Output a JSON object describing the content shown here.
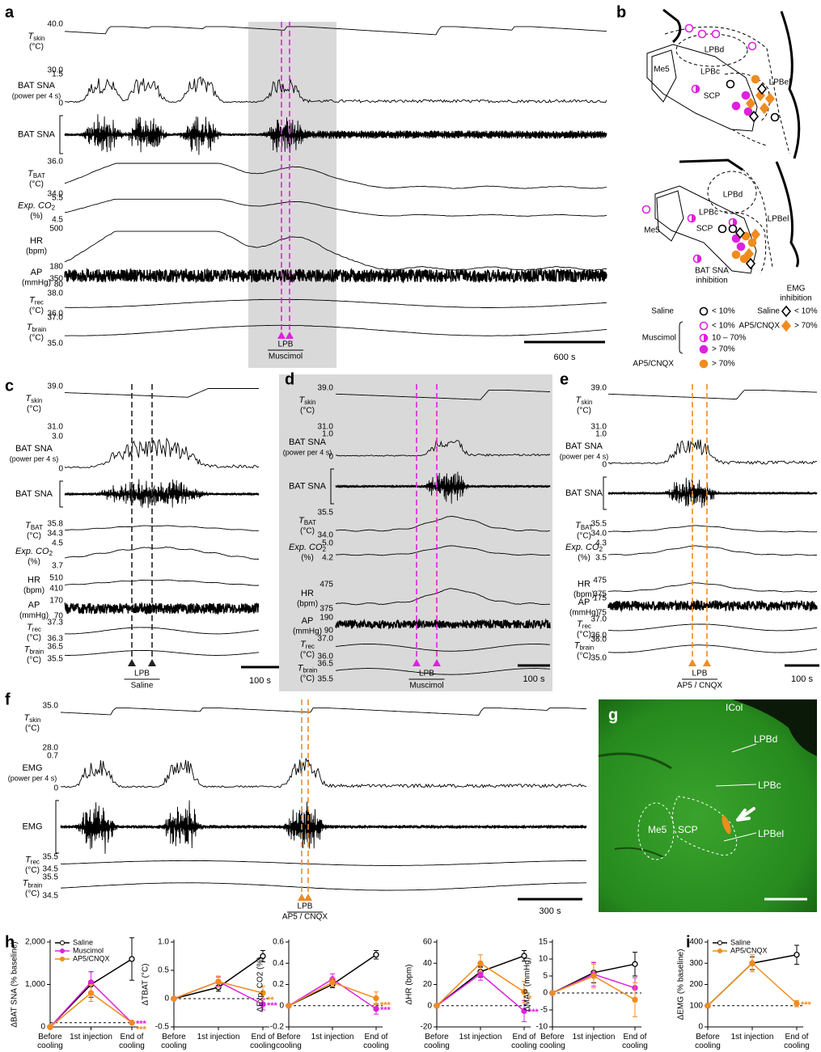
{
  "panels": {
    "a": {
      "letter": "a",
      "rows": [
        {
          "name": "T",
          "sub": "skin",
          "unit": "(°C)",
          "top": "40.0",
          "bottom": "30.0"
        },
        {
          "name": "BAT SNA",
          "unit": "(power per 4 s)",
          "top": "1.5",
          "bottom": "0"
        },
        {
          "name": "BAT SNA"
        },
        {
          "name": "T",
          "sub": "BAT",
          "unit": "(°C)",
          "top": "36.0",
          "bottom": "34.0"
        },
        {
          "name": "Exp. CO",
          "sub": "2",
          "unit": "(%)",
          "top": "5.5",
          "bottom": "4.5"
        },
        {
          "name": "HR",
          "unit": "(bpm)",
          "top": "500",
          "bottom": "350"
        },
        {
          "name": "AP",
          "unit": "(mmHg)",
          "top": "180",
          "bottom": "80"
        },
        {
          "name": "T",
          "sub": "rec",
          "unit": "(°C)",
          "top": "38.0",
          "bottom": "36.0"
        },
        {
          "name": "T",
          "sub": "brain",
          "unit": "(°C)",
          "top": "37.0",
          "bottom": "35.0"
        }
      ],
      "site": "LPB",
      "drug": "Muscimol",
      "scale": "600 s"
    },
    "b": {
      "letter": "b",
      "upper": [
        "LPBd",
        "Me5",
        "LPBc",
        "LPBel",
        "SCP"
      ],
      "lower": [
        "LPBd",
        "LPBc",
        "LPBel",
        "Me5",
        "SCP"
      ],
      "bat_title": [
        "BAT SNA",
        "inhibition"
      ],
      "emg_title": [
        "EMG",
        "inhibition"
      ],
      "saline": "Saline",
      "saline_level": "< 10%",
      "muscimol": "Muscimol",
      "muscimol_levels": [
        "< 10%",
        "10 – 70%",
        "> 70%"
      ],
      "ap5": "AP5/CNQX",
      "ap5_level": "> 70%",
      "emg_saline": "Saline",
      "emg_saline_level": "< 10%",
      "emg_ap5": "AP5/CNQX",
      "emg_ap5_level": "> 70%"
    },
    "c": {
      "letter": "c",
      "rows": [
        {
          "name": "T",
          "sub": "skin",
          "unit": "(°C)",
          "top": "39.0",
          "bottom": "31.0"
        },
        {
          "name": "BAT SNA",
          "unit": "(power per 4 s)",
          "top": "3.0",
          "bottom": "0"
        },
        {
          "name": "BAT SNA"
        },
        {
          "name": "T",
          "sub": "BAT",
          "unit": "(°C)",
          "top": "35.8",
          "bottom": "34.3"
        },
        {
          "name": "Exp. CO",
          "sub": "2",
          "unit": "(%)",
          "top": "4.5",
          "bottom": "3.7"
        },
        {
          "name": "HR",
          "unit": "(bpm)",
          "top": "510",
          "bottom": "410"
        },
        {
          "name": "AP",
          "unit": "(mmHg)",
          "top": "170",
          "bottom": "70"
        },
        {
          "name": "T",
          "sub": "rec",
          "unit": "(°C)",
          "top": "37.3",
          "bottom": "36.3"
        },
        {
          "name": "T",
          "sub": "brain",
          "unit": "(°C)",
          "top": "36.5",
          "bottom": "35.5"
        }
      ],
      "site": "LPB",
      "drug": "Saline",
      "scale": "100 s"
    },
    "d": {
      "letter": "d",
      "rows": [
        {
          "name": "T",
          "sub": "skin",
          "unit": "(°C)",
          "top": "39.0",
          "bottom": "31.0"
        },
        {
          "name": "BAT SNA",
          "unit": "(power per 4 s)",
          "top": "1.0",
          "bottom": "0"
        },
        {
          "name": "BAT SNA"
        },
        {
          "name": "T",
          "sub": "BAT",
          "unit": "(°C)",
          "top": "35.5",
          "bottom": "34.0"
        },
        {
          "name": "Exp. CO",
          "sub": "2",
          "unit": "(%)",
          "top": "5.0",
          "bottom": "4.2"
        },
        {
          "name": "HR",
          "unit": "(bpm)",
          "top": "475",
          "bottom": "375"
        },
        {
          "name": "AP",
          "unit": "(mmHg)",
          "top": "190",
          "bottom": "90"
        },
        {
          "name": "T",
          "sub": "rec",
          "unit": "(°C)",
          "top": "37.0",
          "bottom": "36.0"
        },
        {
          "name": "T",
          "sub": "brain",
          "unit": "(°C)",
          "top": "36.5",
          "bottom": "35.5"
        }
      ],
      "site": "LPB",
      "drug": "Muscimol",
      "scale": "100 s"
    },
    "e": {
      "letter": "e",
      "rows": [
        {
          "name": "T",
          "sub": "skin",
          "unit": "(°C)",
          "top": "39.0",
          "bottom": "31.0"
        },
        {
          "name": "BAT SNA",
          "unit": "(power per 4 s)",
          "top": "1.0",
          "bottom": "0"
        },
        {
          "name": "BAT SNA"
        },
        {
          "name": "T",
          "sub": "BAT",
          "unit": "(°C)",
          "top": "35.5",
          "bottom": "34.0"
        },
        {
          "name": "Exp. CO",
          "sub": "2",
          "unit": "(%)",
          "top": "4.3",
          "bottom": "3.5"
        },
        {
          "name": "HR",
          "unit": "(bpm)",
          "top": "475",
          "bottom": "375"
        },
        {
          "name": "AP",
          "unit": "(mmHg)",
          "top": "175",
          "bottom": "75"
        },
        {
          "name": "T",
          "sub": "rec",
          "unit": "(°C)",
          "top": "37.0",
          "bottom": "36.0"
        },
        {
          "name": "T",
          "sub": "brain",
          "unit": "(°C)",
          "top": "36.0",
          "bottom": "35.0"
        }
      ],
      "site": "LPB",
      "drug": "AP5 / CNQX",
      "scale": "100 s"
    },
    "f": {
      "letter": "f",
      "rows": [
        {
          "name": "T",
          "sub": "skin",
          "unit": "(°C)",
          "top": "35.0",
          "bottom": "28.0"
        },
        {
          "name": "EMG",
          "unit": "(power per 4 s)",
          "top": "0.7",
          "bottom": "0"
        },
        {
          "name": "EMG"
        },
        {
          "name": "T",
          "sub": "rec",
          "unit": "(°C)",
          "top": "35.5",
          "bottom": "34.5"
        },
        {
          "name": "T",
          "sub": "brain",
          "unit": "(°C)",
          "top": "35.5",
          "bottom": "34.5"
        }
      ],
      "site": "LPB",
      "drug": "AP5 / CNQX",
      "scale": "300 s"
    },
    "g": {
      "letter": "g",
      "labels": [
        "ICol",
        "LPBd",
        "LPBc",
        "LPBel",
        "Me5",
        "SCP"
      ]
    },
    "h": {
      "letter": "h"
    },
    "i": {
      "letter": "i"
    }
  },
  "chart_data": [
    {
      "type": "line",
      "y_label": "ΔBAT SNA (% baseline)",
      "categories": [
        "Before cooling",
        "1st injection",
        "End of cooling"
      ],
      "ylim": [
        0,
        2000
      ],
      "yticks": [
        0,
        {
          "value": 1000,
          "label": "1,000"
        },
        {
          "value": 2000,
          "label": "2,000"
        }
      ],
      "reference_line": 100,
      "legend": "upper left",
      "series": [
        {
          "name": "Saline",
          "color": "#000000",
          "values": [
            0,
            1000,
            1600
          ],
          "errors": [
            0,
            300,
            500
          ],
          "significance": [
            null,
            null,
            null
          ]
        },
        {
          "name": "Muscimol",
          "color": "#e020e0",
          "values": [
            0,
            1050,
            100
          ],
          "errors": [
            0,
            250,
            20
          ],
          "significance": [
            null,
            null,
            "***"
          ]
        },
        {
          "name": "AP5/CNQX",
          "color": "#f08c1e",
          "values": [
            0,
            800,
            100
          ],
          "errors": [
            0,
            200,
            20
          ],
          "significance": [
            null,
            null,
            "***"
          ]
        }
      ]
    },
    {
      "type": "line",
      "y_label": "ΔTBAT (°C)",
      "categories": [
        "Before cooling",
        "1st injection",
        "End of cooling"
      ],
      "ylim": [
        -0.5,
        1
      ],
      "yticks": [
        -0.5,
        0,
        0.5,
        {
          "value": 1,
          "label": "1.0"
        }
      ],
      "reference_line": 0,
      "series": [
        {
          "color": "#000000",
          "values": [
            0,
            0.2,
            0.75
          ],
          "errors": [
            0,
            0.07,
            0.1
          ],
          "significance": [
            null,
            null,
            null
          ]
        },
        {
          "color": "#e020e0",
          "values": [
            0,
            0.3,
            -0.1
          ],
          "errors": [
            0,
            0.08,
            0.1
          ],
          "significance": [
            null,
            null,
            "***"
          ]
        },
        {
          "color": "#f08c1e",
          "values": [
            0,
            0.3,
            0.1
          ],
          "errors": [
            0,
            0.1,
            0.12
          ],
          "significance": [
            null,
            null,
            "**"
          ]
        }
      ]
    },
    {
      "type": "line",
      "y_label": "ΔExp. CO2 (%)",
      "categories": [
        "Before cooling",
        "1st injection",
        "End of cooling"
      ],
      "ylim": [
        -0.2,
        0.6
      ],
      "yticks": [
        -0.2,
        0,
        0.2,
        0.4,
        0.6
      ],
      "reference_line": 0,
      "series": [
        {
          "color": "#000000",
          "values": [
            0,
            0.2,
            0.48
          ],
          "errors": [
            0,
            0.03,
            0.04
          ],
          "significance": [
            null,
            null,
            null
          ]
        },
        {
          "color": "#e020e0",
          "values": [
            0,
            0.25,
            -0.03
          ],
          "errors": [
            0,
            0.05,
            0.05
          ],
          "significance": [
            null,
            null,
            "***"
          ]
        },
        {
          "color": "#f08c1e",
          "values": [
            0,
            0.22,
            0.07
          ],
          "errors": [
            0,
            0.04,
            0.06
          ],
          "significance": [
            null,
            null,
            "***"
          ]
        }
      ]
    },
    {
      "type": "line",
      "y_label": "ΔHR (bpm)",
      "categories": [
        "Before cooling",
        "1st injection",
        "End of cooling"
      ],
      "ylim": [
        -20,
        60
      ],
      "yticks": [
        -20,
        0,
        20,
        40,
        60
      ],
      "reference_line": 0,
      "series": [
        {
          "color": "#000000",
          "values": [
            0,
            32,
            47
          ],
          "errors": [
            0,
            5,
            5
          ],
          "significance": [
            null,
            null,
            null
          ]
        },
        {
          "color": "#e020e0",
          "values": [
            0,
            30,
            -5
          ],
          "errors": [
            0,
            6,
            10
          ],
          "significance": [
            null,
            null,
            "***"
          ]
        },
        {
          "color": "#f08c1e",
          "values": [
            0,
            40,
            13
          ],
          "errors": [
            0,
            8,
            10
          ],
          "significance": [
            null,
            null,
            "*"
          ]
        }
      ]
    },
    {
      "type": "line",
      "y_label": "ΔMAP (mmHg)",
      "categories": [
        "Before cooling",
        "1st injection",
        "End of cooling"
      ],
      "ylim": [
        -10,
        15
      ],
      "yticks": [
        -10,
        -5,
        0,
        5,
        10,
        15
      ],
      "reference_line": 0,
      "series": [
        {
          "color": "#000000",
          "values": [
            0,
            6,
            8.5
          ],
          "errors": [
            0,
            3,
            3.5
          ],
          "significance": [
            null,
            null,
            null
          ]
        },
        {
          "color": "#e020e0",
          "values": [
            0,
            5.5,
            1.5
          ],
          "errors": [
            0,
            3.5,
            3
          ],
          "significance": [
            null,
            null,
            null
          ]
        },
        {
          "color": "#f08c1e",
          "values": [
            0,
            5,
            -2
          ],
          "errors": [
            0,
            3.5,
            5
          ],
          "significance": [
            null,
            null,
            null
          ]
        }
      ]
    },
    {
      "type": "line",
      "y_label": "ΔEMG (% baseline)",
      "categories": [
        "Before cooling",
        "1st injection",
        "End of cooling"
      ],
      "ylim": [
        0,
        400
      ],
      "yticks": [
        0,
        100,
        200,
        300,
        400
      ],
      "reference_line": 100,
      "legend": "upper left",
      "series": [
        {
          "name": "Saline",
          "color": "#000000",
          "values": [
            100,
            300,
            340
          ],
          "errors": [
            0,
            30,
            45
          ],
          "significance": [
            null,
            null,
            null
          ]
        },
        {
          "name": "AP5/CNQX",
          "color": "#f08c1e",
          "values": [
            100,
            300,
            110
          ],
          "errors": [
            0,
            40,
            15
          ],
          "significance": [
            null,
            null,
            "***"
          ]
        }
      ]
    }
  ]
}
